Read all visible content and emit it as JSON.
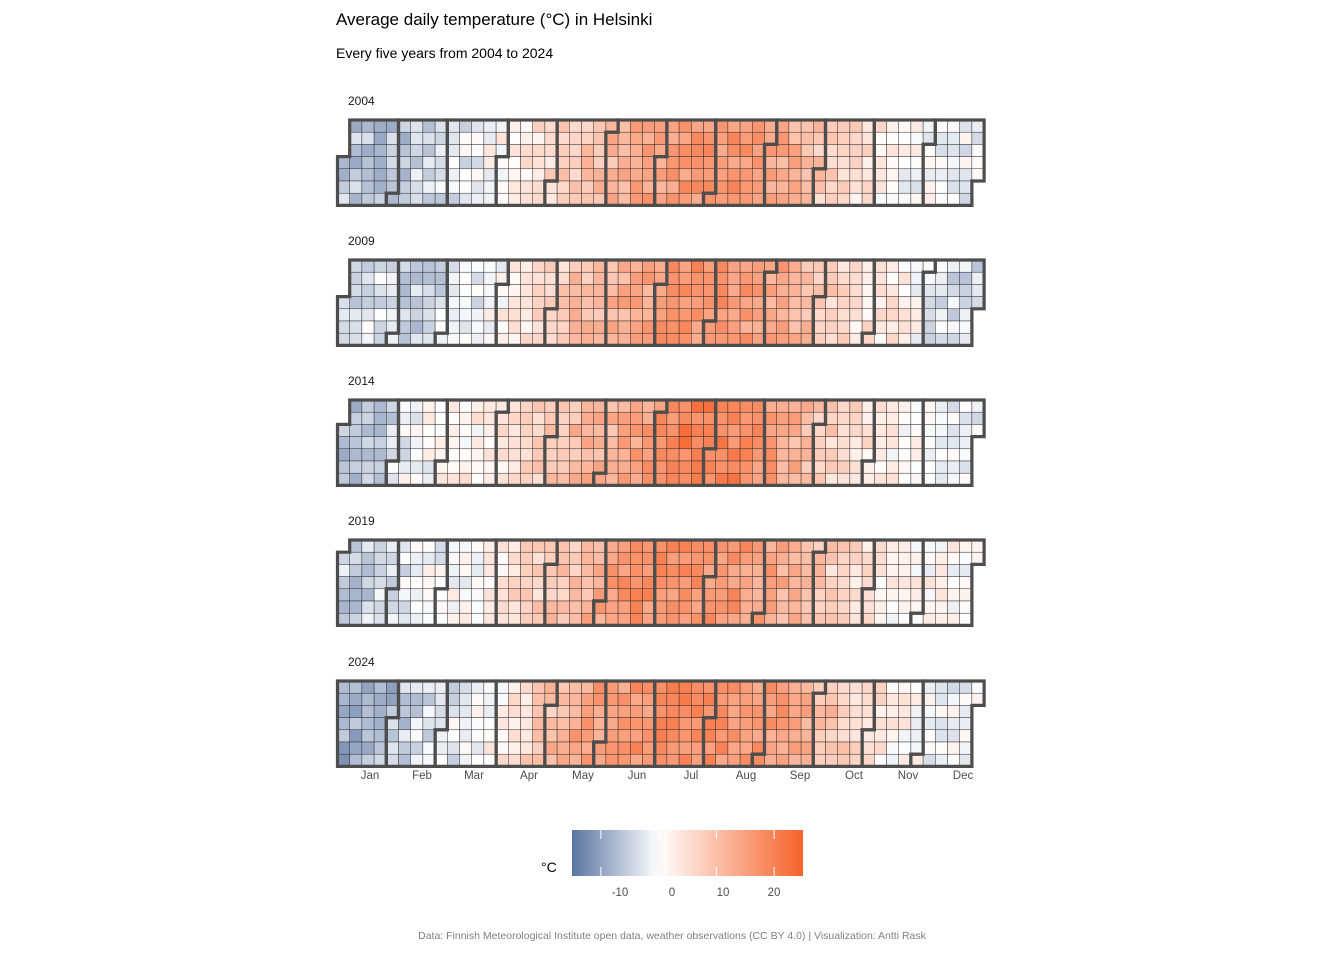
{
  "chart_data": {
    "type": "heatmap",
    "title": "Average daily temperature (°C) in Helsinki",
    "subtitle": "Every five years from 2004 to 2024",
    "caption": "Data: Finnish Meteorological Institute open data, weather observations (CC BY 4.0) | Visualization: Antti Rask",
    "legend": {
      "title": "°C",
      "ticks": [
        -10,
        0,
        10,
        20
      ],
      "range": [
        -15,
        25
      ],
      "colors": {
        "low": "#5a74a1",
        "mid": "#ffffff",
        "high": "#f6622a"
      }
    },
    "months": [
      "Jan",
      "Feb",
      "Mar",
      "Apr",
      "May",
      "Jun",
      "Jul",
      "Aug",
      "Sep",
      "Oct",
      "Nov",
      "Dec"
    ],
    "years": [
      {
        "year": "2004",
        "monthly_mean": [
          -6,
          -5,
          -1,
          4,
          9,
          13,
          16,
          17,
          12,
          6,
          1,
          -1
        ]
      },
      {
        "year": "2009",
        "monthly_mean": [
          -3,
          -5,
          -2,
          4,
          10,
          13,
          17,
          16,
          13,
          5,
          3,
          -4
        ]
      },
      {
        "year": "2014",
        "monthly_mean": [
          -7,
          0,
          2,
          5,
          11,
          13,
          20,
          19,
          13,
          6,
          2,
          -2
        ]
      },
      {
        "year": "2019",
        "monthly_mean": [
          -5,
          -1,
          0,
          6,
          10,
          17,
          17,
          17,
          12,
          6,
          2,
          1
        ]
      },
      {
        "year": "2024",
        "monthly_mean": [
          -9,
          -4,
          -1,
          5,
          14,
          16,
          18,
          17,
          15,
          8,
          2,
          -1
        ]
      }
    ]
  }
}
